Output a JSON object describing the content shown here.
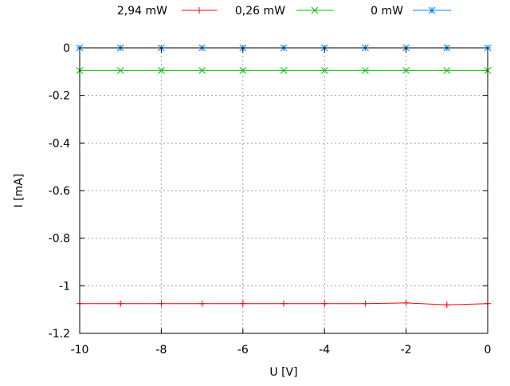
{
  "chart_data": {
    "type": "line",
    "title": "",
    "xlabel": "U [V]",
    "ylabel": "I [mA]",
    "xlim": [
      -10,
      0
    ],
    "ylim": [
      -1.2,
      0
    ],
    "xticks": [
      -10,
      -8,
      -6,
      -4,
      -2,
      0
    ],
    "yticks": [
      0,
      -0.2,
      -0.4,
      -0.6,
      -0.8,
      -1,
      -1.2
    ],
    "xtick_labels": [
      "-10",
      "-8",
      "-6",
      "-4",
      "-2",
      "0"
    ],
    "ytick_labels": [
      "0",
      "-0.2",
      "-0.4",
      "-0.6",
      "-0.8",
      "-1",
      "-1.2"
    ],
    "grid": true,
    "legend_position": "top",
    "x": [
      -10,
      -9,
      -8,
      -7,
      -6,
      -5,
      -4,
      -3,
      -2,
      -1,
      0
    ],
    "series": [
      {
        "name": "2,94 mW",
        "color": "#ff0000",
        "marker": "plus",
        "values": [
          -1.075,
          -1.075,
          -1.075,
          -1.075,
          -1.075,
          -1.075,
          -1.075,
          -1.075,
          -1.072,
          -1.08,
          -1.075
        ]
      },
      {
        "name": "0,26 mW",
        "color": "#00c000",
        "marker": "cross",
        "values": [
          -0.095,
          -0.095,
          -0.095,
          -0.095,
          -0.095,
          -0.095,
          -0.095,
          -0.095,
          -0.095,
          -0.095,
          -0.095
        ]
      },
      {
        "name": "0 mW",
        "color": "#0080ff",
        "marker": "star",
        "values": [
          0,
          0,
          0,
          0,
          0,
          0,
          0,
          0,
          0,
          0,
          0
        ]
      }
    ]
  }
}
